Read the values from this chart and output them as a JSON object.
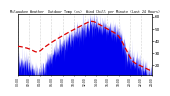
{
  "title": "Milwaukee Weather  Outdoor Temp (vs)  Wind Chill per Minute (Last 24 Hours)",
  "bg_color": "#ffffff",
  "plot_bg_color": "#ffffff",
  "bar_color": "#0000ee",
  "line_color": "#dd0000",
  "grid_color": "#999999",
  "ylim": [
    12,
    62
  ],
  "yticks": [
    20,
    30,
    40,
    50,
    60
  ],
  "ytick_labels": [
    "20",
    "30",
    "40",
    "50",
    "60"
  ],
  "n_points": 1440,
  "seed": 17
}
